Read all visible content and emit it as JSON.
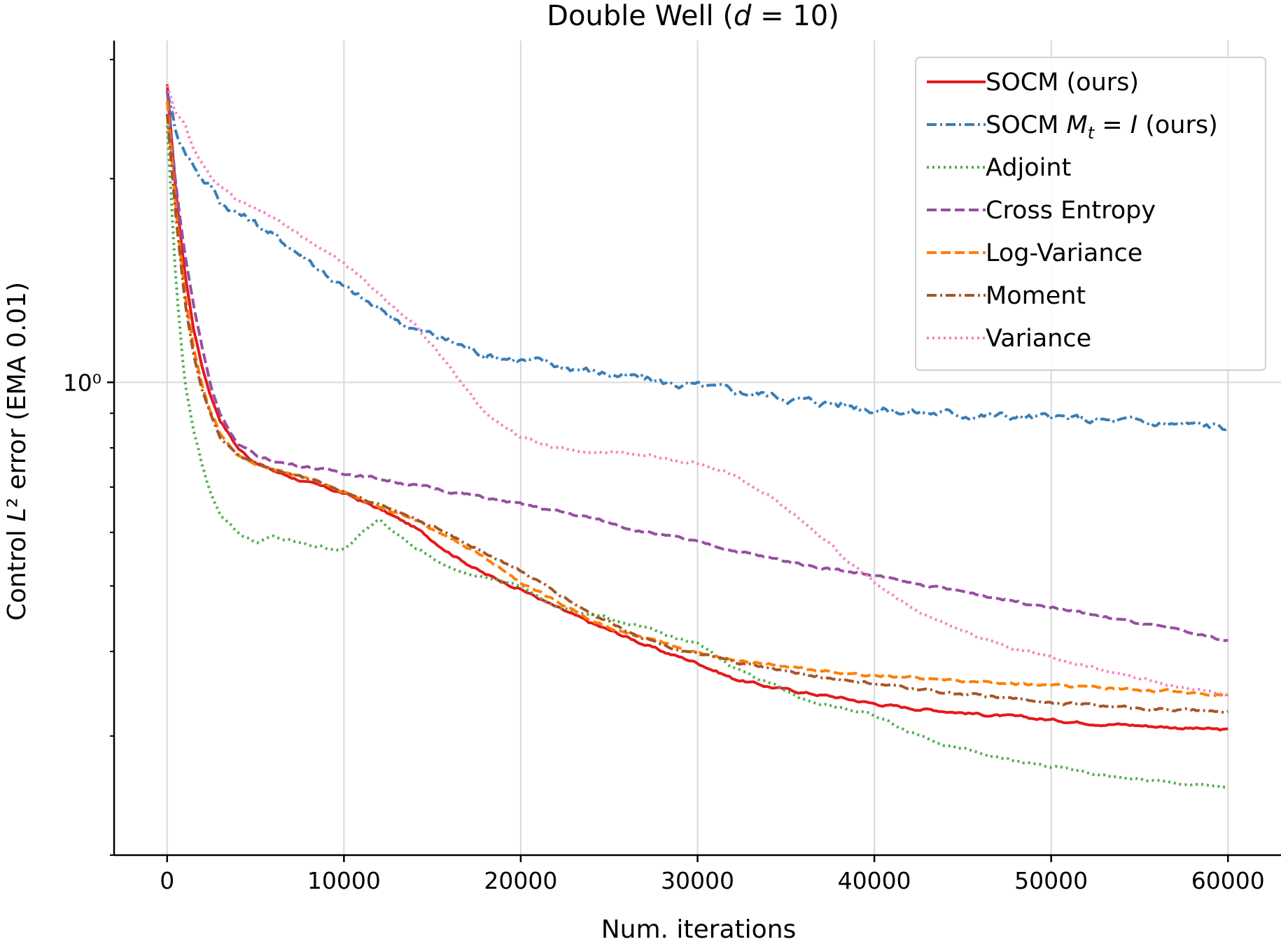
{
  "chart_data": {
    "type": "line",
    "title": "Double Well (d = 10)",
    "xlabel": "Num. iterations",
    "ylabel": "Control L² error (EMA 0.01)",
    "xscale": "linear",
    "yscale": "log",
    "xlim": [
      -3000,
      63000
    ],
    "ylim": [
      0.2,
      3.2
    ],
    "grid": true,
    "legend_position": "top-right",
    "x_ticks": [
      0,
      10000,
      20000,
      30000,
      40000,
      50000,
      60000
    ],
    "x_tick_labels": [
      "0",
      "10000",
      "20000",
      "30000",
      "40000",
      "50000",
      "60000"
    ],
    "y_major_ticks": [
      1.0
    ],
    "y_major_tick_labels": [
      "10⁰"
    ],
    "y_minor_ticks": [
      0.2,
      0.3,
      0.4,
      0.5,
      0.6,
      0.7,
      0.8,
      0.9,
      2.0,
      3.0
    ],
    "x": [
      0,
      500,
      1000,
      1500,
      2000,
      2500,
      3000,
      4000,
      5000,
      6000,
      8000,
      10000,
      12000,
      14000,
      16000,
      18000,
      20000,
      22000,
      24000,
      26000,
      28000,
      30000,
      32000,
      34000,
      36000,
      38000,
      40000,
      42000,
      44000,
      46000,
      48000,
      50000,
      52000,
      54000,
      56000,
      58000,
      60000
    ],
    "series": [
      {
        "name": "SOCM (ours)",
        "color": "#e41a1c",
        "dash": "solid",
        "values": [
          2.75,
          1.9,
          1.45,
          1.2,
          1.05,
          0.95,
          0.88,
          0.8,
          0.76,
          0.74,
          0.71,
          0.685,
          0.65,
          0.61,
          0.56,
          0.52,
          0.495,
          0.465,
          0.44,
          0.42,
          0.4,
          0.385,
          0.365,
          0.355,
          0.348,
          0.342,
          0.335,
          0.33,
          0.327,
          0.323,
          0.32,
          0.317,
          0.314,
          0.312,
          0.31,
          0.308,
          0.306
        ]
      },
      {
        "name": "SOCM M_t = I (ours)",
        "color": "#377eb8",
        "dash": "dashdot",
        "values": [
          2.7,
          2.35,
          2.2,
          2.1,
          2.0,
          1.95,
          1.85,
          1.78,
          1.72,
          1.65,
          1.52,
          1.38,
          1.28,
          1.2,
          1.15,
          1.1,
          1.08,
          1.06,
          1.04,
          1.02,
          1.0,
          0.985,
          0.97,
          0.96,
          0.94,
          0.93,
          0.915,
          0.905,
          0.9,
          0.895,
          0.89,
          0.885,
          0.88,
          0.875,
          0.87,
          0.865,
          0.86
        ]
      },
      {
        "name": "Adjoint",
        "color": "#4daf4a",
        "dash": "dotted",
        "values": [
          2.4,
          1.4,
          1.0,
          0.85,
          0.75,
          0.68,
          0.64,
          0.6,
          0.58,
          0.59,
          0.575,
          0.565,
          0.63,
          0.57,
          0.53,
          0.515,
          0.5,
          0.465,
          0.455,
          0.44,
          0.425,
          0.41,
          0.38,
          0.36,
          0.34,
          0.33,
          0.322,
          0.305,
          0.292,
          0.282,
          0.275,
          0.27,
          0.265,
          0.26,
          0.257,
          0.254,
          0.252
        ]
      },
      {
        "name": "Cross Entropy",
        "color": "#984ea3",
        "dash": "dashed",
        "values": [
          2.7,
          1.95,
          1.55,
          1.3,
          1.12,
          0.98,
          0.9,
          0.81,
          0.78,
          0.765,
          0.75,
          0.735,
          0.72,
          0.705,
          0.69,
          0.675,
          0.66,
          0.645,
          0.63,
          0.61,
          0.595,
          0.58,
          0.565,
          0.55,
          0.538,
          0.528,
          0.518,
          0.505,
          0.495,
          0.485,
          0.475,
          0.465,
          0.455,
          0.445,
          0.435,
          0.425,
          0.415
        ]
      },
      {
        "name": "Log-Variance",
        "color": "#ff7f00",
        "dash": "dashed",
        "values": [
          2.6,
          1.8,
          1.35,
          1.12,
          0.98,
          0.9,
          0.84,
          0.78,
          0.76,
          0.745,
          0.72,
          0.69,
          0.655,
          0.625,
          0.59,
          0.55,
          0.505,
          0.475,
          0.445,
          0.425,
          0.41,
          0.398,
          0.39,
          0.384,
          0.378,
          0.373,
          0.369,
          0.366,
          0.363,
          0.36,
          0.358,
          0.356,
          0.354,
          0.352,
          0.35,
          0.348,
          0.346
        ]
      },
      {
        "name": "Moment",
        "color": "#a65628",
        "dash": "dashdot",
        "values": [
          2.5,
          1.75,
          1.32,
          1.1,
          0.97,
          0.89,
          0.83,
          0.78,
          0.76,
          0.745,
          0.72,
          0.69,
          0.66,
          0.63,
          0.595,
          0.56,
          0.525,
          0.49,
          0.455,
          0.43,
          0.41,
          0.396,
          0.386,
          0.378,
          0.37,
          0.364,
          0.358,
          0.353,
          0.348,
          0.344,
          0.34,
          0.337,
          0.334,
          0.331,
          0.329,
          0.327,
          0.325
        ]
      },
      {
        "name": "Variance",
        "color": "#f781bf",
        "dash": "dotted",
        "values": [
          2.75,
          2.5,
          2.4,
          2.2,
          2.1,
          2.0,
          1.95,
          1.85,
          1.8,
          1.75,
          1.62,
          1.5,
          1.35,
          1.22,
          1.05,
          0.9,
          0.83,
          0.8,
          0.79,
          0.785,
          0.775,
          0.76,
          0.73,
          0.68,
          0.62,
          0.56,
          0.505,
          0.465,
          0.44,
          0.42,
          0.405,
          0.392,
          0.38,
          0.37,
          0.36,
          0.352,
          0.345
        ]
      }
    ]
  }
}
